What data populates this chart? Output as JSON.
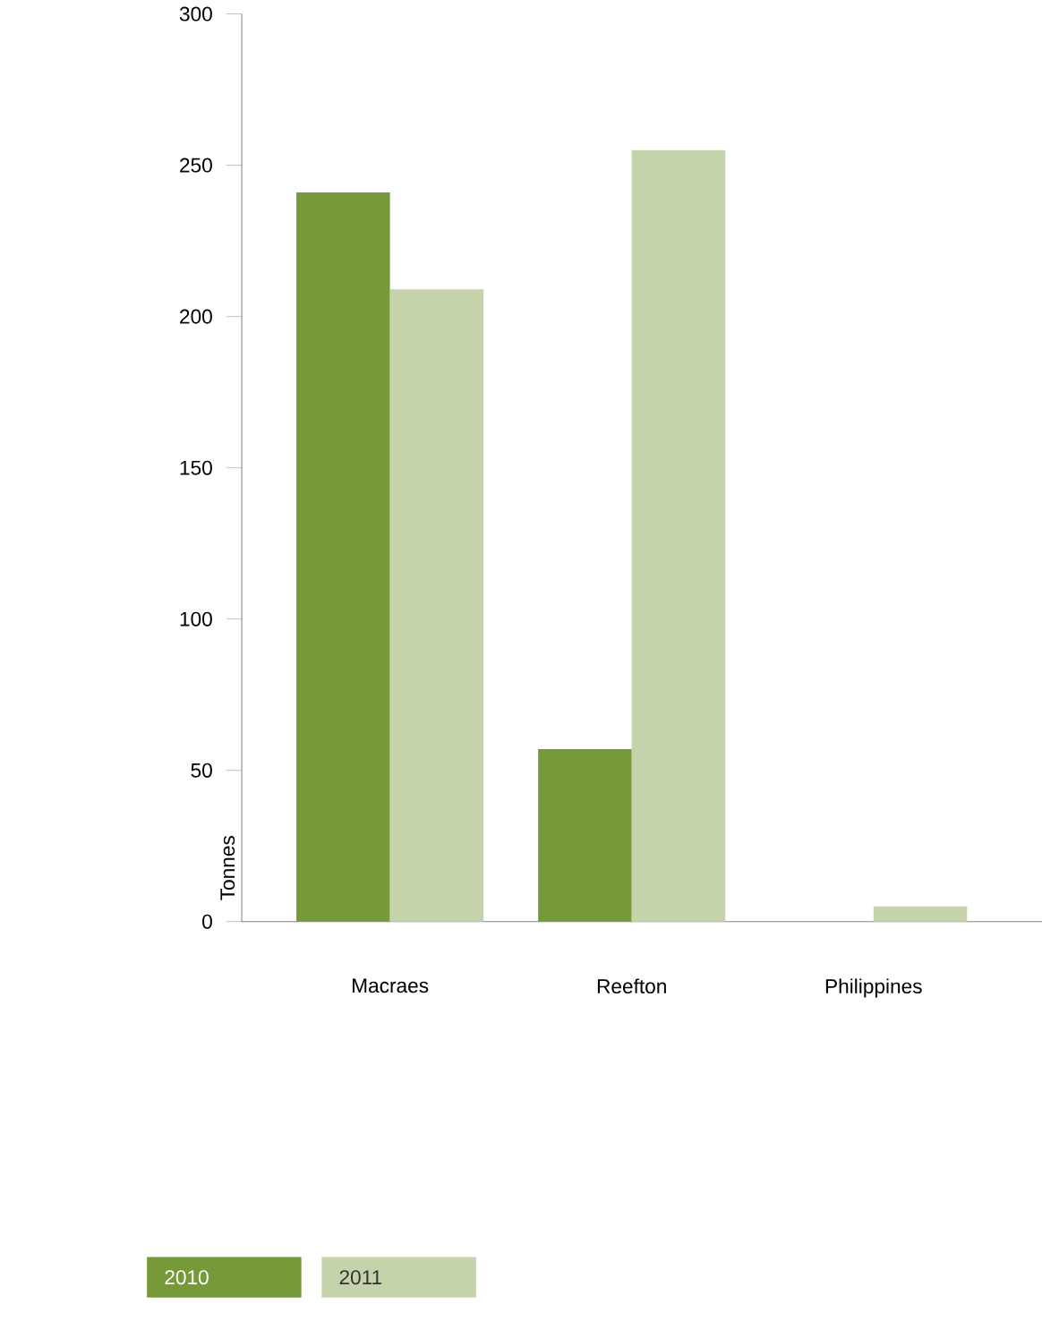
{
  "chart_data": {
    "type": "bar",
    "ylabel": "Tonnes",
    "categories": [
      "Macraes",
      "Reefton",
      "Philippines"
    ],
    "series": [
      {
        "name": "2010",
        "color": "#76993a",
        "values": [
          241,
          57,
          null
        ]
      },
      {
        "name": "2011",
        "color": "#c5d3ab",
        "values": [
          209,
          255,
          5
        ]
      }
    ],
    "ylim": [
      0,
      300
    ],
    "yticks": [
      0,
      50,
      100,
      150,
      200,
      250,
      300
    ],
    "legend": "bottom"
  }
}
